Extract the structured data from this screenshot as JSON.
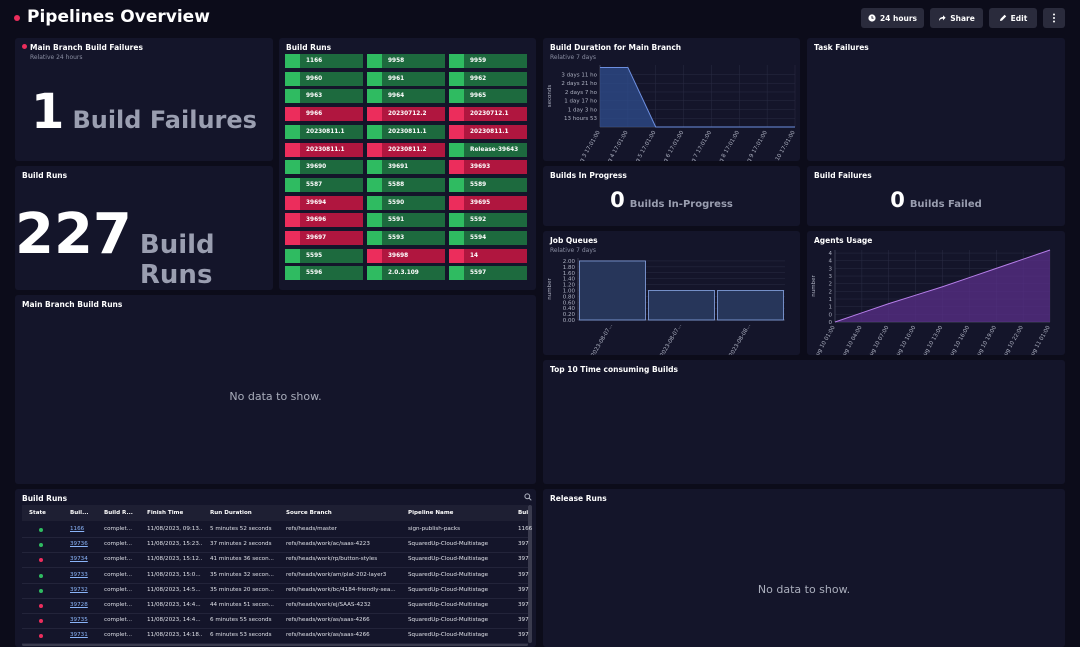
{
  "header": {
    "title": "Pipelines Overview",
    "time_button": "24 hours",
    "share_button": "Share",
    "edit_button": "Edit"
  },
  "main_branch_failures": {
    "title": "Main Branch Build Failures",
    "subtitle": "Relative 24 hours",
    "value": 1,
    "label": "Build Failures"
  },
  "build_runs_total": {
    "title": "Build Runs",
    "value": 227,
    "label": "Build Runs"
  },
  "build_runs_grid": {
    "title": "Build Runs",
    "state_colors": {
      "success": {
        "bar": "#1d6a3e",
        "accent": "#2fbb61"
      },
      "failed": {
        "bar": "#b0163f",
        "accent": "#ec2d5c"
      }
    },
    "cells": [
      {
        "label": "1166",
        "state": "success"
      },
      {
        "label": "9958",
        "state": "success"
      },
      {
        "label": "9959",
        "state": "success"
      },
      {
        "label": "9960",
        "state": "success"
      },
      {
        "label": "9961",
        "state": "success"
      },
      {
        "label": "9962",
        "state": "success"
      },
      {
        "label": "9963",
        "state": "success"
      },
      {
        "label": "9964",
        "state": "success"
      },
      {
        "label": "9965",
        "state": "success"
      },
      {
        "label": "9966",
        "state": "failed"
      },
      {
        "label": "20230712.2",
        "state": "failed"
      },
      {
        "label": "20230712.1",
        "state": "failed"
      },
      {
        "label": "20230811.1",
        "state": "success"
      },
      {
        "label": "20230811.1",
        "state": "success"
      },
      {
        "label": "20230811.1",
        "state": "failed"
      },
      {
        "label": "20230811.1",
        "state": "failed"
      },
      {
        "label": "20230811.2",
        "state": "failed"
      },
      {
        "label": "Release-39643",
        "state": "success"
      },
      {
        "label": "39690",
        "state": "success"
      },
      {
        "label": "39691",
        "state": "success"
      },
      {
        "label": "39693",
        "state": "failed"
      },
      {
        "label": "5587",
        "state": "success"
      },
      {
        "label": "5588",
        "state": "success"
      },
      {
        "label": "5589",
        "state": "success"
      },
      {
        "label": "39694",
        "state": "failed"
      },
      {
        "label": "5590",
        "state": "success"
      },
      {
        "label": "39695",
        "state": "failed"
      },
      {
        "label": "39696",
        "state": "failed"
      },
      {
        "label": "5591",
        "state": "success"
      },
      {
        "label": "5592",
        "state": "success"
      },
      {
        "label": "39697",
        "state": "failed"
      },
      {
        "label": "5593",
        "state": "success"
      },
      {
        "label": "5594",
        "state": "success"
      },
      {
        "label": "5595",
        "state": "success"
      },
      {
        "label": "39698",
        "state": "failed"
      },
      {
        "label": "14",
        "state": "failed"
      },
      {
        "label": "5596",
        "state": "success"
      },
      {
        "label": "2.0.3.109",
        "state": "success"
      },
      {
        "label": "5597",
        "state": "success"
      }
    ]
  },
  "task_failures": {
    "title": "Task Failures"
  },
  "builds_in_progress": {
    "title": "Builds In Progress",
    "value": 0,
    "label": "Builds In-Progress"
  },
  "build_failures": {
    "title": "Build Failures",
    "value": 0,
    "label": "Builds Failed"
  },
  "main_branch_runs": {
    "title": "Main Branch Build Runs",
    "empty": "No data to show."
  },
  "top_builds": {
    "title": "Top 10 Time consuming Builds"
  },
  "release_runs": {
    "title": "Release Runs",
    "empty": "No data to show."
  },
  "table": {
    "title": "Build Runs",
    "state_colors": {
      "success": "#2fbb61",
      "failed": "#ec2d5c"
    },
    "columns": [
      "State",
      "Buil...",
      "Build R...",
      "Finish Time",
      "Run Duration",
      "Source Branch",
      "Pipeline Name",
      "Bui"
    ],
    "rows": [
      [
        "success",
        "1166",
        "complet...",
        "11/08/2023, 09:13...",
        "5 minutes 52 seconds",
        "refs/heads/master",
        "sign-publish-packs",
        "1166"
      ],
      [
        "success",
        "39736",
        "complet...",
        "11/08/2023, 15:23...",
        "37 minutes 2 seconds",
        "refs/heads/work/ac/saas-4223",
        "SquaredUp-Cloud-Multistage",
        "397"
      ],
      [
        "failed",
        "39734",
        "complet...",
        "11/08/2023, 15:12...",
        "41 minutes 36 secon...",
        "refs/heads/work/rp/button-styles",
        "SquaredUp-Cloud-Multistage",
        "397"
      ],
      [
        "success",
        "39733",
        "complet...",
        "11/08/2023, 15:0...",
        "35 minutes 32 secon...",
        "refs/heads/work/am/plat-202-layer3",
        "SquaredUp-Cloud-Multistage",
        "397"
      ],
      [
        "success",
        "39732",
        "complet...",
        "11/08/2023, 14:5...",
        "35 minutes 20 secon...",
        "refs/heads/work/bc/4184-friendly-sea...",
        "SquaredUp-Cloud-Multistage",
        "397"
      ],
      [
        "failed",
        "39728",
        "complet...",
        "11/08/2023, 14:4...",
        "44 minutes 51 secon...",
        "refs/heads/work/ej/SAAS-4232",
        "SquaredUp-Cloud-Multistage",
        "397"
      ],
      [
        "failed",
        "39735",
        "complet...",
        "11/08/2023, 14:4...",
        "6 minutes 55 seconds",
        "refs/heads/work/as/saas-4266",
        "SquaredUp-Cloud-Multistage",
        "397"
      ],
      [
        "failed",
        "39731",
        "complet...",
        "11/08/2023, 14:18...",
        "6 minutes 53 seconds",
        "refs/heads/work/as/saas-4266",
        "SquaredUp-Cloud-Multistage",
        "397"
      ]
    ]
  },
  "chart_data": [
    {
      "type": "area",
      "title": "Build Duration for Main Branch",
      "subtitle": "Relative 7 days",
      "y_label": "seconds",
      "categories": [
        "Aug 3 17:01:00",
        "Aug 4 17:01:00",
        "Aug 5 17:01:00",
        "Aug 6 17:01:00",
        "Aug 7 17:01:00",
        "Aug 8 17:01:00",
        "Aug 9 17:01:00",
        "Aug 10 17:01:00"
      ],
      "values": [
        340000,
        340000,
        0,
        0,
        0,
        0,
        0,
        0
      ],
      "color": "#6d8fe0",
      "fill_color": "#2f4d8f",
      "ylim": [
        0,
        354000
      ],
      "yticks": [
        {
          "value": 50000,
          "label": "13 hours 53"
        },
        {
          "value": 100000,
          "label": "1 day 3 ho"
        },
        {
          "value": 150000,
          "label": "1 day 17 ho"
        },
        {
          "value": 200000,
          "label": "2 days 7 ho"
        },
        {
          "value": 250000,
          "label": "2 days 21 ho"
        },
        {
          "value": 300000,
          "label": "3 days 11 ho"
        }
      ],
      "grid": true
    },
    {
      "type": "bar",
      "title": "Job Queues",
      "subtitle": "Relative 7 days",
      "y_label": "number",
      "categories": [
        "2023-08-07...",
        "2023-08-07...",
        "2023-08-08..."
      ],
      "values": [
        2,
        1,
        1
      ],
      "color": "#8aa8e8",
      "fill_color": "#27365a",
      "ylim": [
        0,
        2.1
      ],
      "yticks": [
        {
          "value": 0,
          "label": "0.00"
        },
        {
          "value": 0.2,
          "label": "0.20"
        },
        {
          "value": 0.4,
          "label": "0.40"
        },
        {
          "value": 0.6,
          "label": "0.60"
        },
        {
          "value": 0.8,
          "label": "0.80"
        },
        {
          "value": 1,
          "label": "1.00"
        },
        {
          "value": 1.2,
          "label": "1.20"
        },
        {
          "value": 1.4,
          "label": "1.40"
        },
        {
          "value": 1.6,
          "label": "1.60"
        },
        {
          "value": 1.8,
          "label": "1.80"
        },
        {
          "value": 2,
          "label": "2.00"
        }
      ],
      "grid": true
    },
    {
      "type": "area",
      "title": "Agents Usage",
      "y_label": "number",
      "categories": [
        "Aug 10 01:00",
        "Aug 10 04:00",
        "Aug 10 07:00",
        "Aug 10 10:00",
        "Aug 10 13:00",
        "Aug 10 16:00",
        "Aug 10 19:00",
        "Aug 10 22:00",
        "Aug 11 01:00"
      ],
      "values": [
        0,
        0.6,
        1.2,
        1.75,
        2.3,
        2.9,
        3.5,
        4.1,
        4.7
      ],
      "color": "#b57ee8",
      "fill_color": "#5a2f8a",
      "ylim": [
        0,
        4.7
      ],
      "yticks": [
        0,
        {
          "value": 0.5,
          "label": "0"
        },
        1,
        {
          "value": 1.5,
          "label": "1"
        },
        2,
        {
          "value": 2.5,
          "label": "2"
        },
        3,
        {
          "value": 3.5,
          "label": "3"
        },
        4,
        {
          "value": 4.5,
          "label": "4"
        }
      ],
      "grid": true
    }
  ]
}
